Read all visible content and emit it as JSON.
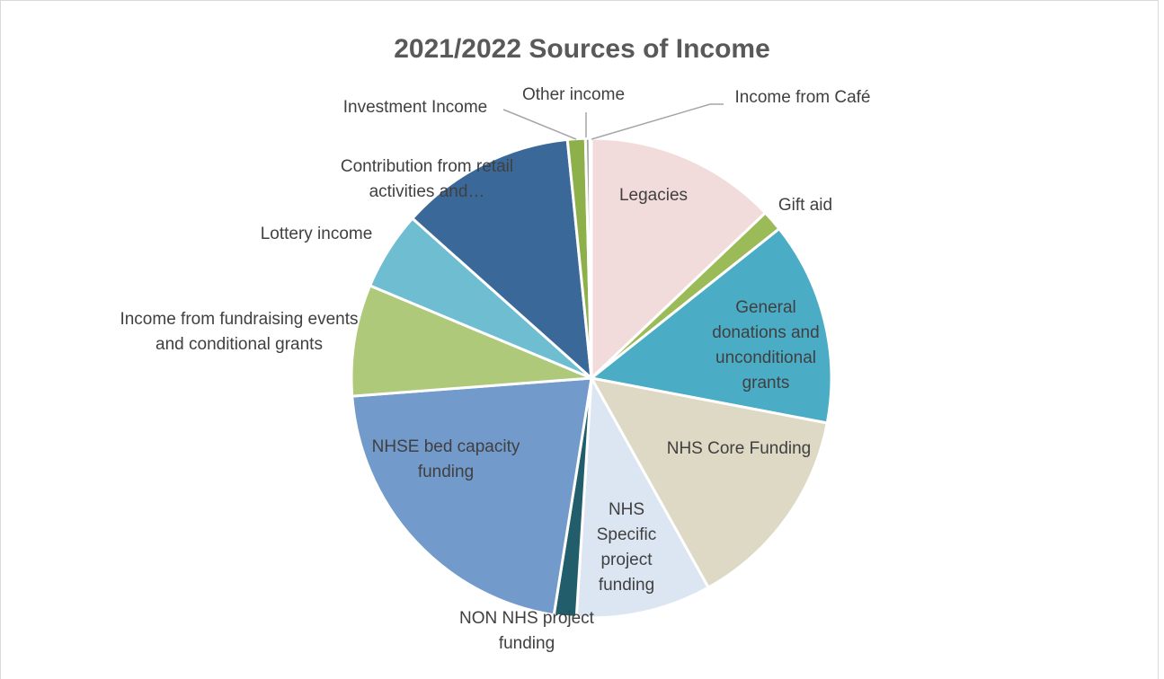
{
  "chart_data": {
    "type": "pie",
    "title": "2021/2022 Sources of Income",
    "categories": [
      "Legacies",
      "Gift aid",
      "General donations and unconditional grants",
      "NHS Core Funding",
      "NHS Specific project funding",
      "NON NHS project funding",
      "NHSE bed capacity funding",
      "Income from fundraising events and conditional grants",
      "Lottery income",
      "Contribution from retail activities and…",
      "Investment Income",
      "Other income",
      "Income from Café"
    ],
    "values": [
      12.9,
      1.4,
      13.7,
      13.9,
      9.1,
      1.5,
      21.3,
      7.5,
      5.3,
      11.8,
      1.2,
      0.3,
      0.1
    ],
    "colors": [
      "#f2dcdb",
      "#9bbb59",
      "#4bacc6",
      "#ddd9c4",
      "#dce6f2",
      "#215d6b",
      "#729aca",
      "#aec97a",
      "#6fbdd1",
      "#3a6899",
      "#8db04a",
      "#a5a5a5",
      "#c0504d"
    ]
  }
}
